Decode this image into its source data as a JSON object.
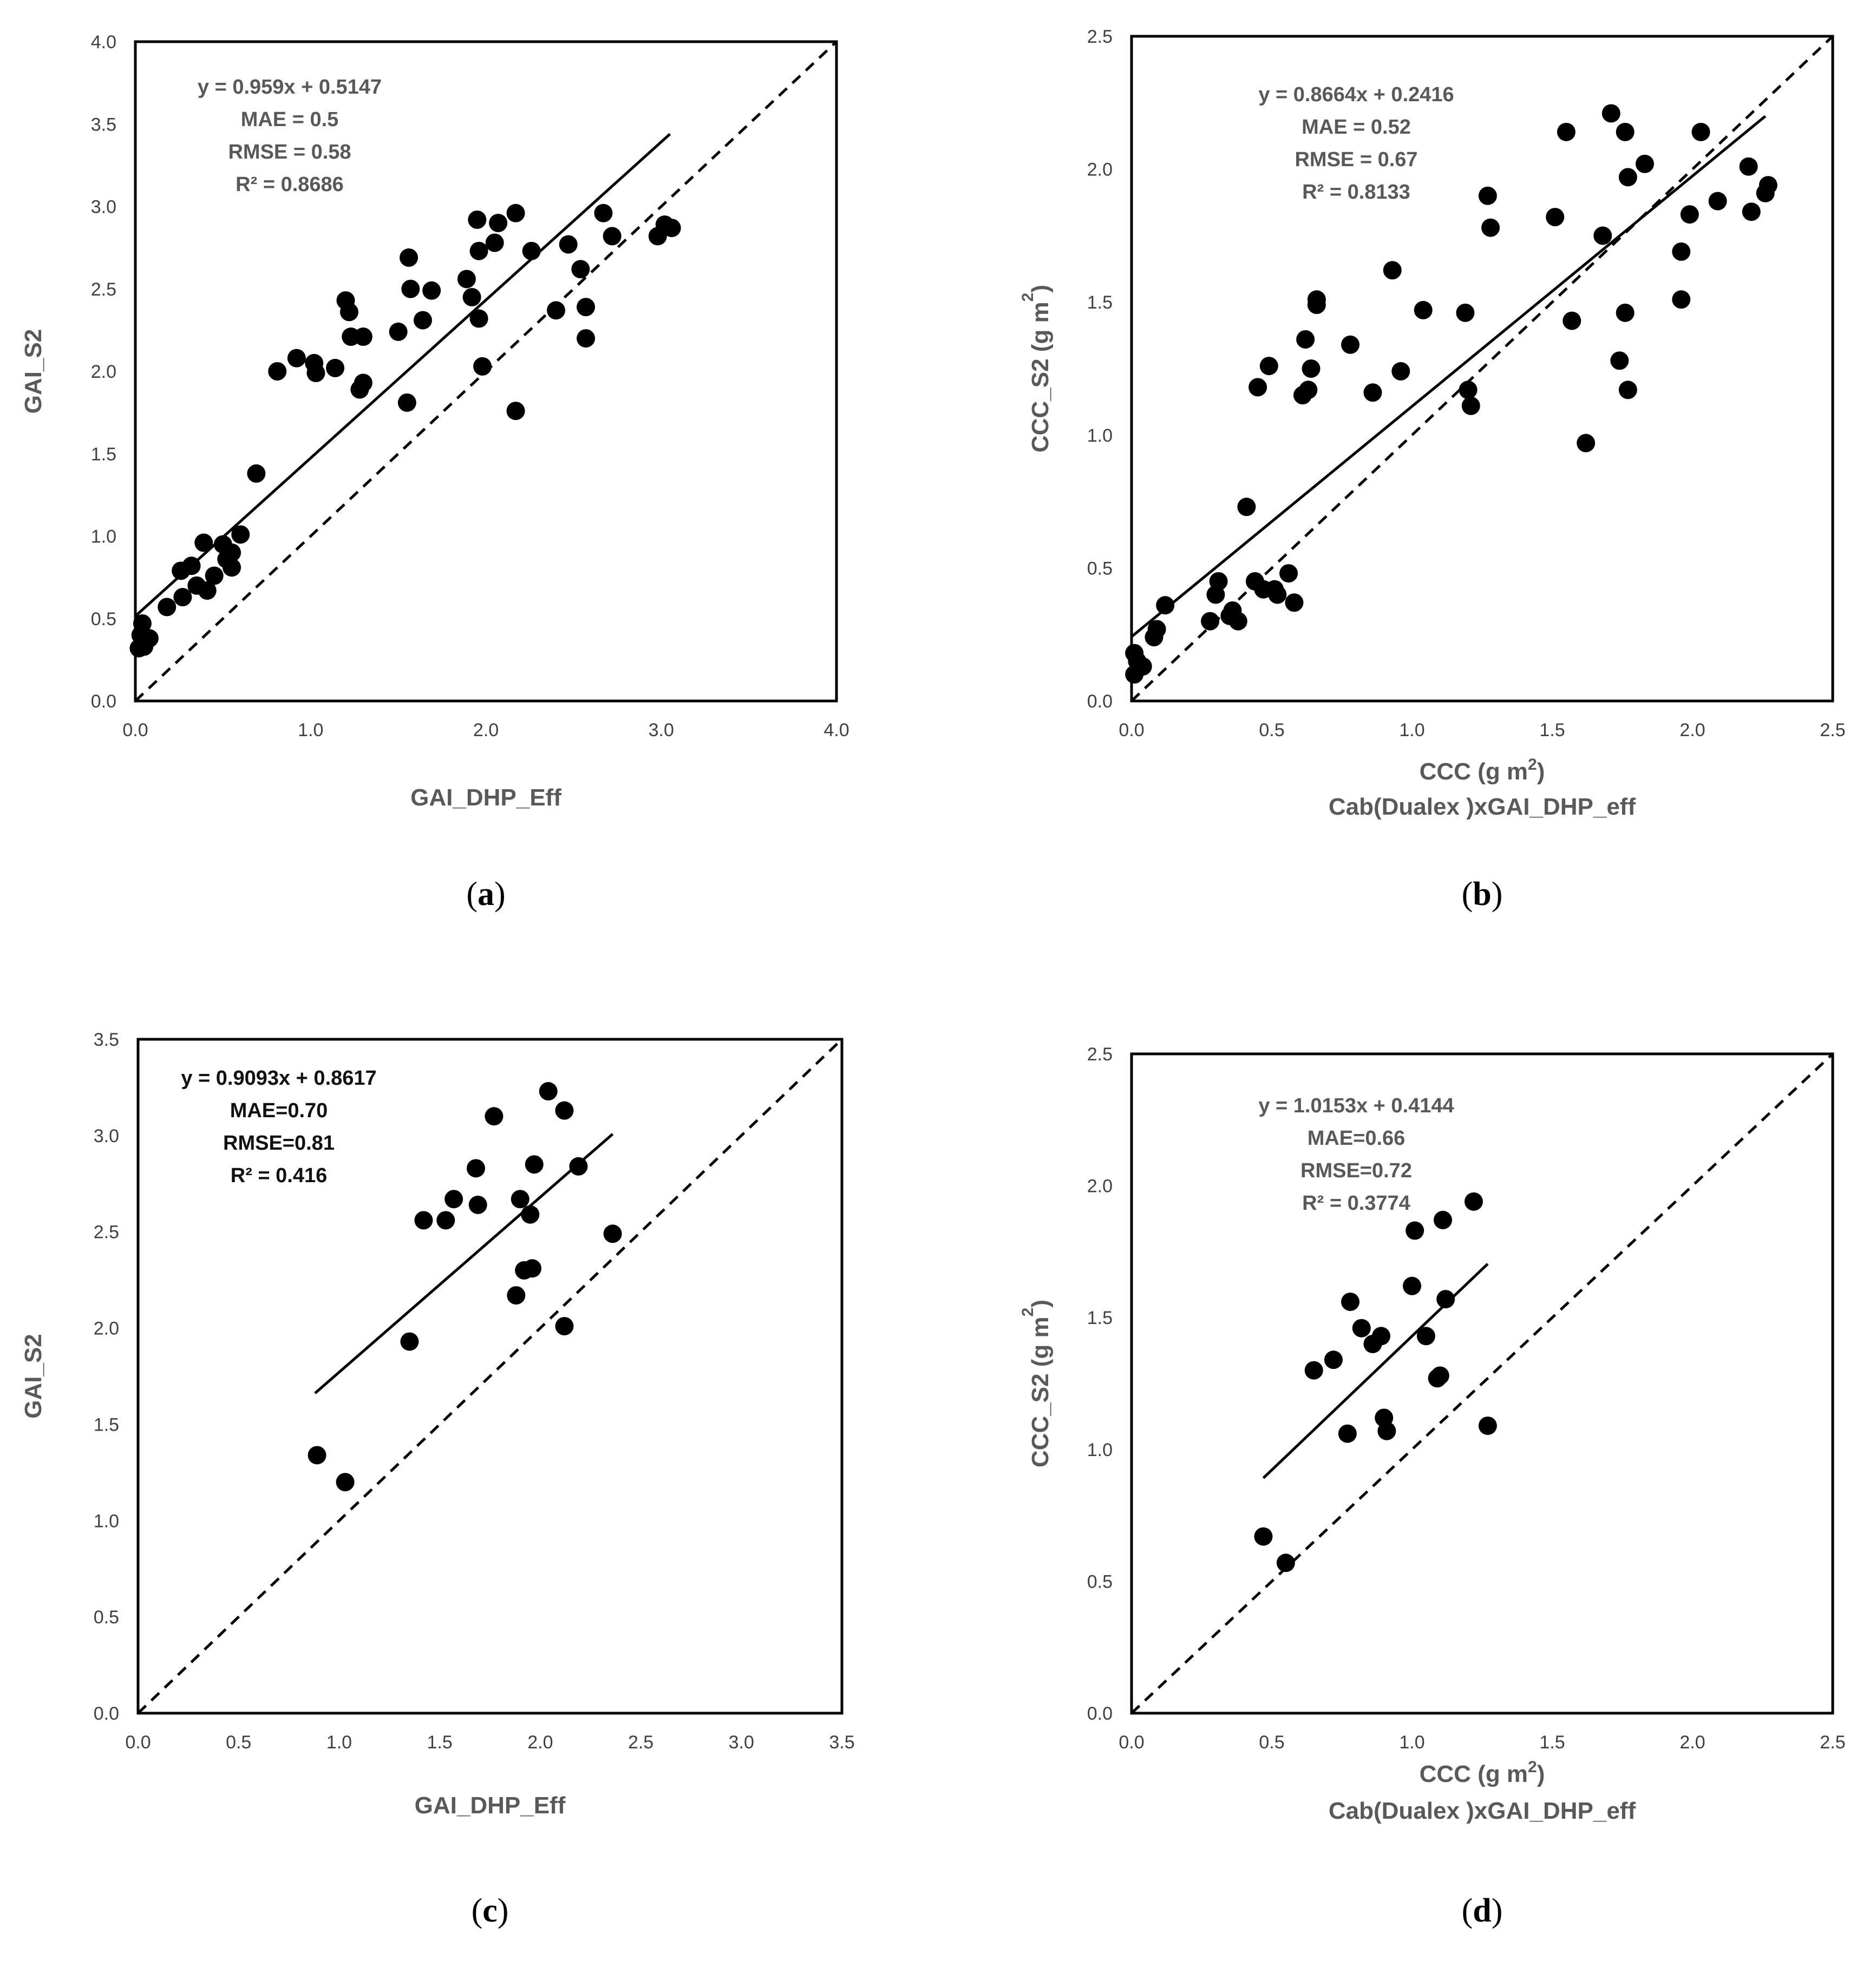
{
  "chart_data": [
    {
      "id": "a",
      "type": "scatter",
      "panel_label": "a",
      "xlabel": "GAI_DHP_Eff",
      "xlabel2": "",
      "ylabel": "GAI_S2",
      "ylabel_sup": "",
      "xlim": [
        0,
        4
      ],
      "ylim": [
        0,
        4
      ],
      "xticks": [
        "0.0",
        "1.0",
        "2.0",
        "3.0",
        "4.0"
      ],
      "yticks": [
        "0.0",
        "0.5",
        "1.0",
        "1.5",
        "2.0",
        "2.5",
        "3.0",
        "3.5",
        "4.0"
      ],
      "xtick_step": 1.0,
      "ytick_step": 0.5,
      "equation": "y = 0.959x + 0.5147",
      "mae": "MAE = 0.5",
      "rmse": "RMSE = 0.58",
      "r2": "R² = 0.8686",
      "stats_dark": false,
      "fit": {
        "slope": 0.959,
        "intercept": 0.5147,
        "x_range": [
          0,
          3.05
        ]
      },
      "one_to_one": true,
      "points": {
        "x": [
          0.02,
          0.04,
          0.05,
          0.08,
          0.03,
          0.18,
          0.27,
          0.26,
          0.32,
          0.35,
          0.39,
          0.41,
          0.45,
          0.5,
          0.52,
          0.55,
          0.55,
          0.6,
          0.69,
          0.81,
          0.92,
          1.02,
          1.03,
          1.14,
          1.2,
          1.22,
          1.23,
          1.28,
          1.3,
          1.3,
          1.5,
          1.55,
          1.56,
          1.57,
          1.64,
          1.69,
          1.89,
          1.92,
          1.95,
          1.96,
          1.96,
          1.98,
          2.05,
          2.07,
          2.17,
          2.17,
          2.26,
          2.4,
          2.47,
          2.54,
          2.57,
          2.57,
          2.67,
          2.72,
          2.98,
          3.02,
          3.06
        ],
        "y": [
          0.32,
          0.47,
          0.33,
          0.38,
          0.4,
          0.57,
          0.63,
          0.79,
          0.82,
          0.7,
          0.96,
          0.67,
          0.76,
          0.95,
          0.86,
          0.81,
          0.9,
          1.01,
          1.38,
          2.0,
          2.08,
          2.05,
          1.99,
          2.02,
          2.43,
          2.36,
          2.21,
          1.89,
          1.93,
          2.21,
          2.24,
          1.81,
          2.69,
          2.5,
          2.31,
          2.49,
          2.56,
          2.45,
          2.92,
          2.32,
          2.73,
          2.03,
          2.78,
          2.9,
          1.76,
          2.96,
          2.73,
          2.37,
          2.77,
          2.62,
          2.39,
          2.2,
          2.96,
          2.82,
          2.82,
          2.89,
          2.87
        ]
      }
    },
    {
      "id": "b",
      "type": "scatter",
      "panel_label": "b",
      "xlabel": "CCC (g m",
      "xlabel_sup": "2",
      "xlabel2": "Cab(Dualex )xGAI_DHP_eff",
      "ylabel": "CCC_S2 (g m",
      "ylabel_sup": "2",
      "xlim": [
        0,
        2.5
      ],
      "ylim": [
        0,
        2.5
      ],
      "xticks": [
        "0.0",
        "0.5",
        "1.0",
        "1.5",
        "2.0",
        "2.5"
      ],
      "yticks": [
        "0.0",
        "0.5",
        "1.0",
        "1.5",
        "2.0",
        "2.5"
      ],
      "xtick_step": 0.5,
      "ytick_step": 0.5,
      "equation": "y = 0.8664x + 0.2416",
      "mae": "MAE = 0.52",
      "rmse": "RMSE = 0.67",
      "r2": "R² = 0.8133",
      "stats_dark": false,
      "fit": {
        "slope": 0.8664,
        "intercept": 0.2416,
        "x_range": [
          0,
          2.26
        ]
      },
      "one_to_one": true,
      "points": {
        "x": [
          0.01,
          0.01,
          0.02,
          0.04,
          0.08,
          0.09,
          0.12,
          0.28,
          0.3,
          0.31,
          0.35,
          0.36,
          0.38,
          0.41,
          0.44,
          0.45,
          0.47,
          0.49,
          0.51,
          0.52,
          0.56,
          0.58,
          0.61,
          0.62,
          0.63,
          0.64,
          0.66,
          0.66,
          0.78,
          0.86,
          0.93,
          0.96,
          1.04,
          1.19,
          1.2,
          1.21,
          1.27,
          1.28,
          1.51,
          1.55,
          1.57,
          1.62,
          1.68,
          1.71,
          1.74,
          1.76,
          1.76,
          1.77,
          1.77,
          1.83,
          1.96,
          1.96,
          1.99,
          2.03,
          2.09,
          2.2,
          2.21,
          2.26,
          2.27
        ],
        "y": [
          0.18,
          0.1,
          0.15,
          0.13,
          0.24,
          0.27,
          0.36,
          0.3,
          0.4,
          0.45,
          0.32,
          0.34,
          0.3,
          0.73,
          0.45,
          1.18,
          0.42,
          1.26,
          0.42,
          0.4,
          0.48,
          0.37,
          1.15,
          1.36,
          1.17,
          1.25,
          1.49,
          1.51,
          1.34,
          1.16,
          1.62,
          1.24,
          1.47,
          1.46,
          1.17,
          1.11,
          1.9,
          1.78,
          1.82,
          2.14,
          1.43,
          0.97,
          1.75,
          2.21,
          1.28,
          2.14,
          1.46,
          1.97,
          1.17,
          2.02,
          1.51,
          1.69,
          1.83,
          2.14,
          1.88,
          2.01,
          1.84,
          1.91,
          1.94
        ]
      }
    },
    {
      "id": "c",
      "type": "scatter",
      "panel_label": "c",
      "xlabel": "GAI_DHP_Eff",
      "xlabel2": "",
      "ylabel": "GAI_S2",
      "ylabel_sup": "",
      "xlim": [
        0,
        3.5
      ],
      "ylim": [
        0,
        3.5
      ],
      "xticks": [
        "0.0",
        "0.5",
        "1.0",
        "1.5",
        "2.0",
        "2.5",
        "3.0",
        "3.5"
      ],
      "yticks": [
        "0.0",
        "0.5",
        "1.0",
        "1.5",
        "2.0",
        "2.5",
        "3.0",
        "3.5"
      ],
      "xtick_step": 0.5,
      "ytick_step": 0.5,
      "equation": "y = 0.9093x + 0.8617",
      "mae": "MAE=0.70",
      "rmse": "RMSE=0.81",
      "r2": "R² = 0.416",
      "stats_dark": true,
      "fit": {
        "slope": 0.9093,
        "intercept": 0.8617,
        "x_range": [
          0.88,
          2.36
        ]
      },
      "one_to_one": true,
      "points": {
        "x": [
          0.89,
          1.03,
          1.35,
          1.42,
          1.53,
          1.57,
          1.68,
          1.69,
          1.77,
          1.88,
          1.9,
          1.92,
          1.95,
          1.96,
          1.97,
          2.04,
          2.12,
          2.12,
          2.19,
          2.36
        ],
        "y": [
          1.34,
          1.2,
          1.93,
          2.56,
          2.56,
          2.67,
          2.83,
          2.64,
          3.1,
          2.17,
          2.67,
          2.3,
          2.59,
          2.31,
          2.85,
          3.23,
          3.13,
          2.01,
          2.84,
          2.49
        ]
      }
    },
    {
      "id": "d",
      "type": "scatter",
      "panel_label": "d",
      "xlabel": "CCC (g m",
      "xlabel_sup": "2",
      "xlabel2": "Cab(Dualex )xGAI_DHP_eff",
      "ylabel": "CCC_S2 (g m",
      "ylabel_sup": "2",
      "xlim": [
        0,
        2.5
      ],
      "ylim": [
        0,
        2.5
      ],
      "xticks": [
        "0.0",
        "0.5",
        "1.0",
        "1.5",
        "2.0",
        "2.5"
      ],
      "yticks": [
        "0.0",
        "0.5",
        "1.0",
        "1.5",
        "2.0",
        "2.5"
      ],
      "xtick_step": 0.5,
      "ytick_step": 0.5,
      "equation": "y = 1.0153x + 0.4144",
      "mae": "MAE=0.66",
      "rmse": "RMSE=0.72",
      "r2": "R² = 0.3774",
      "stats_dark": false,
      "fit": {
        "slope": 1.0153,
        "intercept": 0.4144,
        "x_range": [
          0.47,
          1.27
        ]
      },
      "one_to_one": true,
      "points": {
        "x": [
          0.47,
          0.55,
          0.65,
          0.72,
          0.77,
          0.78,
          0.82,
          0.86,
          0.89,
          0.9,
          0.91,
          1.0,
          1.01,
          1.05,
          1.09,
          1.1,
          1.11,
          1.12,
          1.22,
          1.27
        ],
        "y": [
          0.67,
          0.57,
          1.3,
          1.34,
          1.06,
          1.56,
          1.46,
          1.4,
          1.43,
          1.12,
          1.07,
          1.62,
          1.83,
          1.43,
          1.27,
          1.28,
          1.87,
          1.57,
          1.94,
          1.09
        ]
      }
    }
  ]
}
